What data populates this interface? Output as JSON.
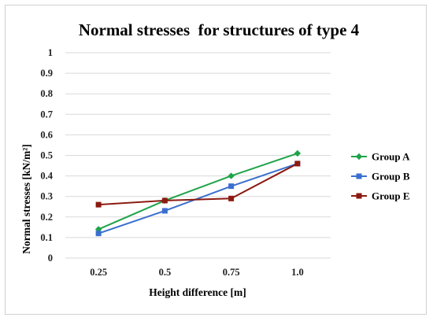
{
  "chart_data": {
    "type": "line",
    "title": "Normal stresses  for structures of type 4",
    "xlabel": "Height difference [m]",
    "ylabel": "Normal stresses [kN/m²]",
    "categories": [
      "0.25",
      "0.5",
      "0.75",
      "1.0"
    ],
    "ylim": [
      0,
      1
    ],
    "yticks": [
      "0",
      "0.1",
      "0.2",
      "0.3",
      "0.4",
      "0.5",
      "0.6",
      "0.7",
      "0.8",
      "0.9",
      "1"
    ],
    "grid": true,
    "legend_position": "right",
    "series": [
      {
        "name": "Group A",
        "color": "#1fa34a",
        "marker": "diamond",
        "values": [
          0.14,
          0.28,
          0.4,
          0.51
        ]
      },
      {
        "name": "Group B",
        "color": "#3a6fcf",
        "marker": "square",
        "values": [
          0.12,
          0.23,
          0.35,
          0.46
        ]
      },
      {
        "name": "Group E",
        "color": "#8b1a10",
        "marker": "square",
        "values": [
          0.26,
          0.28,
          0.29,
          0.46
        ]
      }
    ]
  }
}
